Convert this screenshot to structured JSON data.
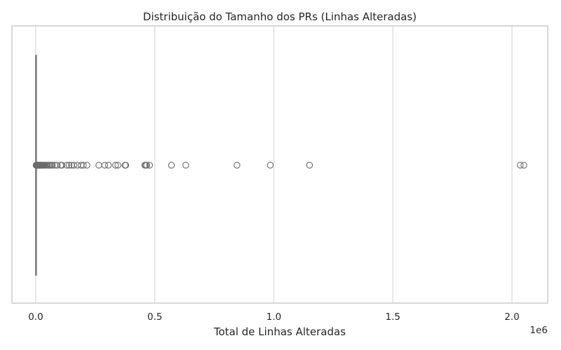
{
  "chart_data": {
    "type": "boxplot",
    "orientation": "horizontal",
    "title": "Distribuição do Tamanho dos PRs (Linhas Alteradas)",
    "xlabel": "Total de Linhas Alteradas",
    "ylabel": "",
    "axis_offset_text": "1e6",
    "xlim": [
      -100000,
      2150000
    ],
    "xticks": [
      0,
      500000,
      1000000,
      1500000,
      2000000
    ],
    "xtick_labels": [
      "0.0",
      "0.5",
      "1.0",
      "1.5",
      "2.0"
    ],
    "grid": "vertical",
    "box": {
      "q1": 50,
      "median": 150,
      "q3": 450,
      "whisker_low": 0,
      "whisker_high": 1100,
      "color": "#808080"
    },
    "outliers": [
      1500,
      2000,
      3000,
      4000,
      5000,
      6000,
      7000,
      8000,
      9000,
      10000,
      12000,
      14000,
      16000,
      18000,
      20000,
      22000,
      25000,
      28000,
      30000,
      33000,
      36000,
      40000,
      45000,
      50000,
      55000,
      60000,
      65000,
      70000,
      80000,
      90000,
      105000,
      110000,
      130000,
      140000,
      150000,
      160000,
      175000,
      190000,
      200000,
      215000,
      265000,
      290000,
      305000,
      335000,
      345000,
      375000,
      378000,
      458000,
      462000,
      466000,
      478000,
      570000,
      630000,
      845000,
      985000,
      1150000,
      2035000,
      2050000
    ],
    "colors": {
      "box_line": "#808080",
      "outlier_edge": "#6b6b6b",
      "grid": "#d9d9d9",
      "frame": "#cccccc"
    }
  }
}
